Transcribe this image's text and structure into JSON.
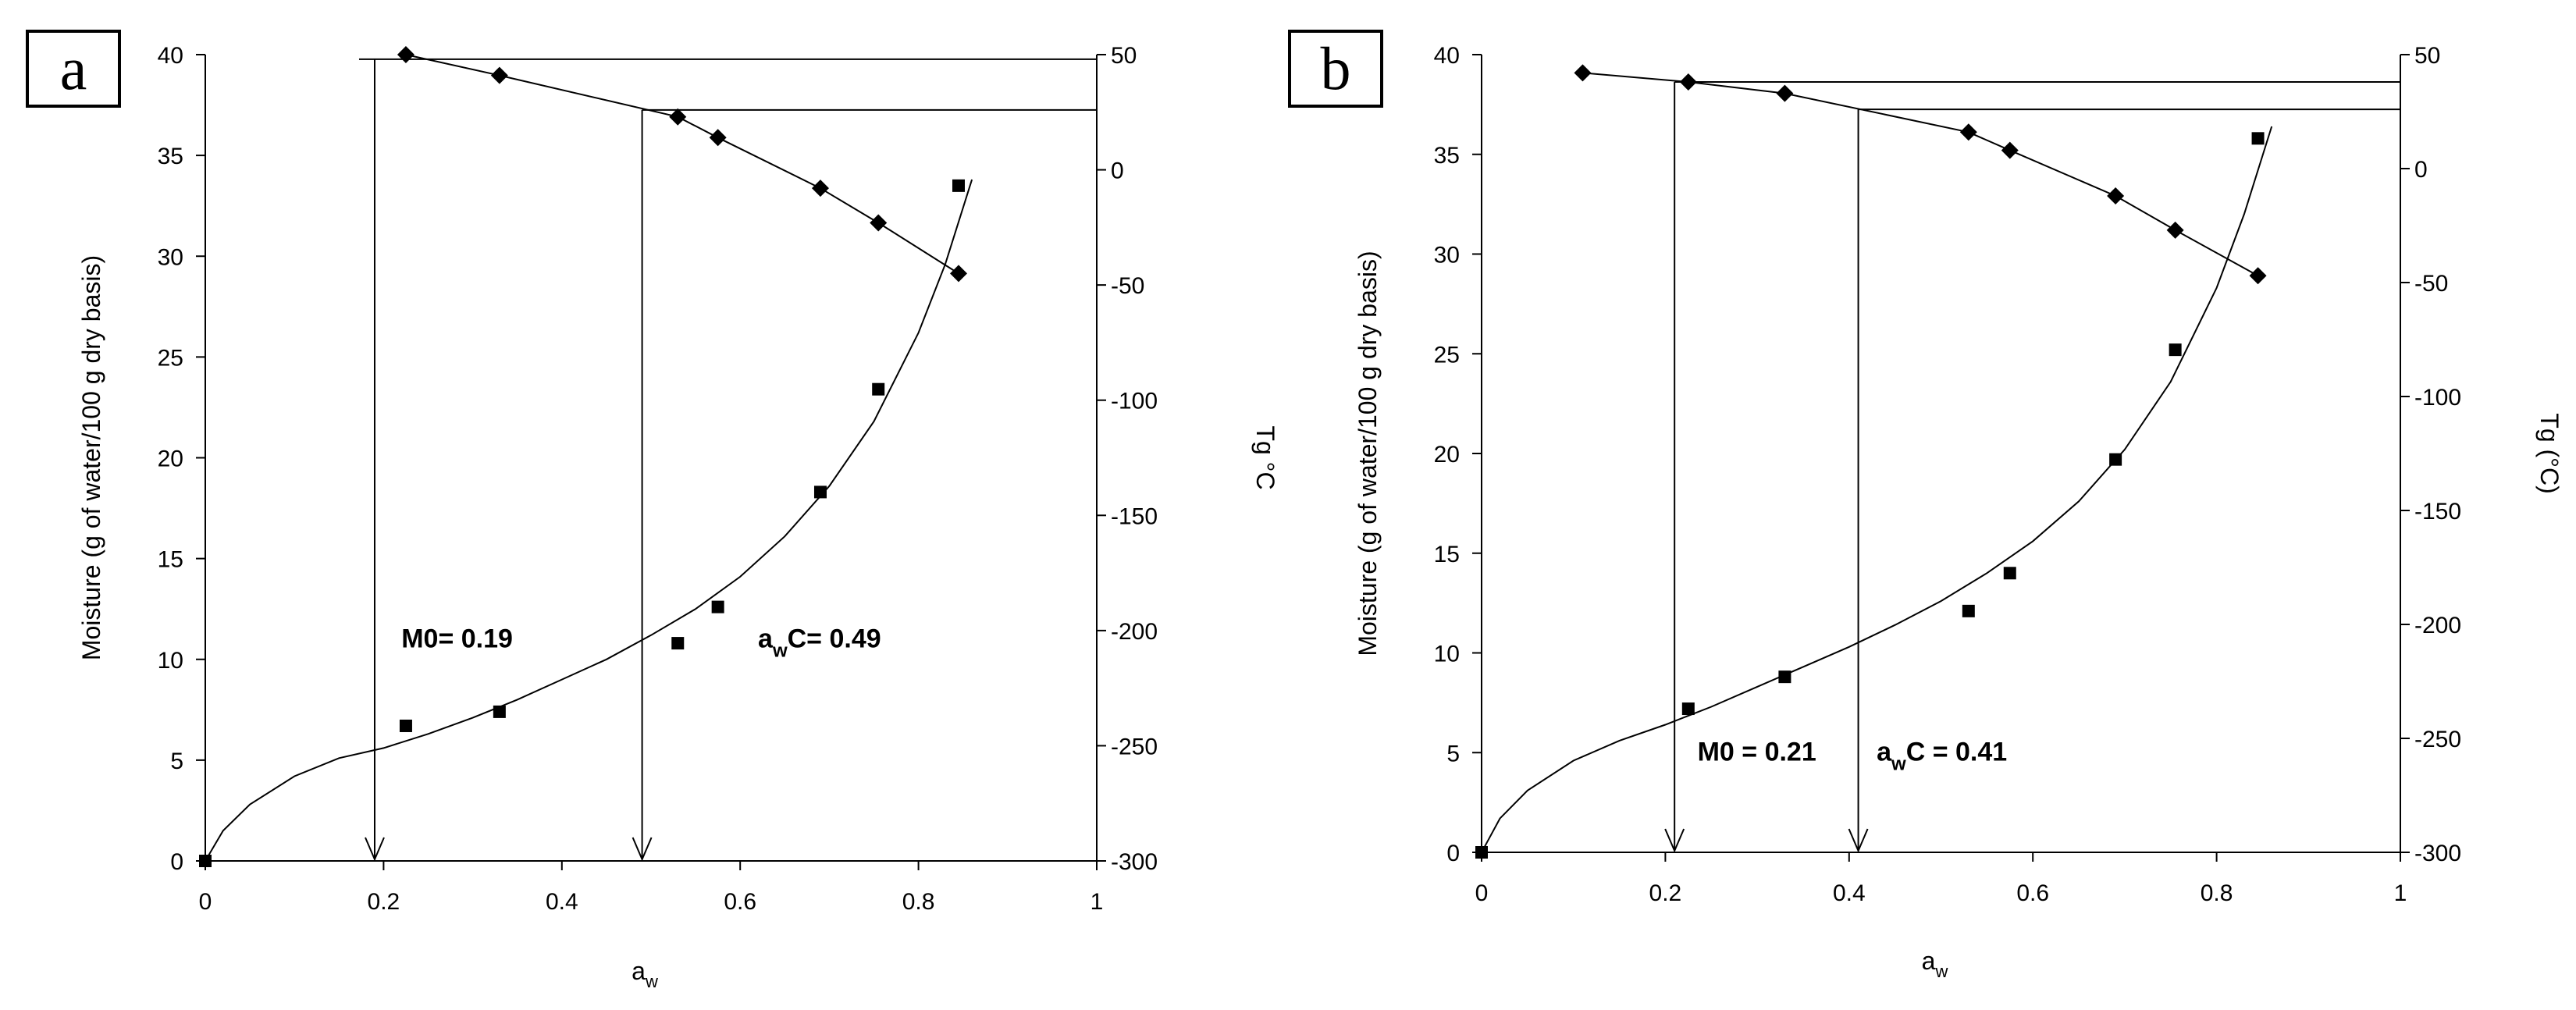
{
  "chart_data": [
    {
      "type": "scatter",
      "panel_label": "a",
      "xlabel": "a",
      "xlabel_sub": "w",
      "ylabel": "Moisture (g of water/100 g dry basis)",
      "y2label": "Tg °C",
      "xlim": [
        0,
        1
      ],
      "ylim": [
        0,
        40
      ],
      "y2lim": [
        -300,
        50
      ],
      "x_ticks": [
        "0",
        "0.2",
        "0.4",
        "0.6",
        "0.8",
        "1"
      ],
      "y_ticks": [
        "0",
        "5",
        "10",
        "15",
        "20",
        "25",
        "30",
        "35",
        "40"
      ],
      "y2_ticks": [
        "50",
        "0",
        "-50",
        "-100",
        "-150",
        "-200",
        "-250",
        "-300"
      ],
      "grid": false,
      "series": [
        {
          "marker": "square",
          "axis": "left",
          "points": [
            [
              0,
              0
            ],
            [
              0.225,
              6.7
            ],
            [
              0.33,
              7.4
            ],
            [
              0.53,
              10.8
            ],
            [
              0.575,
              12.6
            ],
            [
              0.69,
              18.3
            ],
            [
              0.755,
              23.4
            ],
            [
              0.845,
              33.5
            ]
          ],
          "fit_curve": [
            [
              0,
              0
            ],
            [
              0.02,
              1.5
            ],
            [
              0.05,
              2.8
            ],
            [
              0.1,
              4.2
            ],
            [
              0.15,
              5.1
            ],
            [
              0.2,
              5.6
            ],
            [
              0.25,
              6.3
            ],
            [
              0.3,
              7.1
            ],
            [
              0.35,
              8.0
            ],
            [
              0.4,
              9.0
            ],
            [
              0.45,
              10.0
            ],
            [
              0.5,
              11.2
            ],
            [
              0.55,
              12.5
            ],
            [
              0.6,
              14.1
            ],
            [
              0.65,
              16.1
            ],
            [
              0.7,
              18.6
            ],
            [
              0.75,
              21.8
            ],
            [
              0.8,
              26.2
            ],
            [
              0.83,
              29.6
            ],
            [
              0.86,
              33.8
            ]
          ]
        },
        {
          "marker": "diamond",
          "axis": "right",
          "points": [
            [
              0.225,
              50
            ],
            [
              0.33,
              41
            ],
            [
              0.53,
              23
            ],
            [
              0.575,
              14
            ],
            [
              0.69,
              -8
            ],
            [
              0.755,
              -23
            ],
            [
              0.845,
              -45
            ]
          ]
        }
      ],
      "guides": [
        {
          "x": 0.19,
          "tg": 48
        },
        {
          "x": 0.49,
          "tg": 26
        }
      ],
      "annotations": [
        {
          "text": "M0= 0.19",
          "x": 0.22,
          "y": 10.6
        },
        {
          "prefix": "a",
          "sub": "w",
          "text": "C= 0.49",
          "x": 0.62,
          "y": 10.6
        }
      ]
    },
    {
      "type": "scatter",
      "panel_label": "b",
      "xlabel": "a",
      "xlabel_sub": "w",
      "ylabel": "Moisture (g of water/100 g dry basis)",
      "y2label": "Tg (°C)",
      "xlim": [
        0,
        1
      ],
      "ylim": [
        0,
        40
      ],
      "y2lim": [
        -300,
        50
      ],
      "x_ticks": [
        "0",
        "0.2",
        "0.4",
        "0.6",
        "0.8",
        "1"
      ],
      "y_ticks": [
        "0",
        "5",
        "10",
        "15",
        "20",
        "25",
        "30",
        "35",
        "40"
      ],
      "y2_ticks": [
        "50",
        "0",
        "-50",
        "-100",
        "-150",
        "-200",
        "-250",
        "-300"
      ],
      "grid": false,
      "series": [
        {
          "marker": "square",
          "axis": "left",
          "points": [
            [
              0,
              0
            ],
            [
              0.225,
              7.2
            ],
            [
              0.33,
              8.8
            ],
            [
              0.53,
              12.1
            ],
            [
              0.575,
              14.0
            ],
            [
              0.69,
              19.7
            ],
            [
              0.755,
              25.2
            ],
            [
              0.845,
              35.8
            ]
          ],
          "fit_curve": [
            [
              0,
              0
            ],
            [
              0.02,
              1.7
            ],
            [
              0.05,
              3.1
            ],
            [
              0.1,
              4.6
            ],
            [
              0.15,
              5.6
            ],
            [
              0.2,
              6.4
            ],
            [
              0.25,
              7.3
            ],
            [
              0.3,
              8.3
            ],
            [
              0.35,
              9.3
            ],
            [
              0.4,
              10.3
            ],
            [
              0.45,
              11.4
            ],
            [
              0.5,
              12.6
            ],
            [
              0.55,
              14.0
            ],
            [
              0.6,
              15.6
            ],
            [
              0.65,
              17.6
            ],
            [
              0.7,
              20.2
            ],
            [
              0.75,
              23.6
            ],
            [
              0.8,
              28.3
            ],
            [
              0.83,
              32.0
            ],
            [
              0.86,
              36.4
            ]
          ]
        },
        {
          "marker": "diamond",
          "axis": "right",
          "points": [
            [
              0.11,
              42
            ],
            [
              0.225,
              38
            ],
            [
              0.33,
              33
            ],
            [
              0.53,
              16
            ],
            [
              0.575,
              8
            ],
            [
              0.69,
              -12
            ],
            [
              0.755,
              -27
            ],
            [
              0.845,
              -47
            ]
          ]
        }
      ],
      "guides": [
        {
          "x": 0.21,
          "tg": 38
        },
        {
          "x": 0.41,
          "tg": 26
        }
      ],
      "annotations": [
        {
          "text": "M0 = 0.21",
          "x": 0.235,
          "y": 4.6
        },
        {
          "prefix": "a",
          "sub": "w",
          "text": "C = 0.41",
          "x": 0.43,
          "y": 4.6
        }
      ]
    }
  ]
}
